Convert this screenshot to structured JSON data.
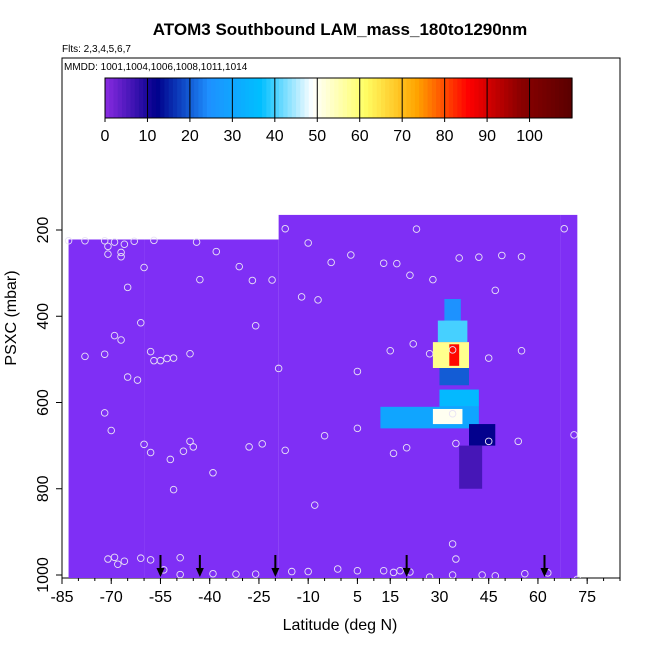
{
  "chart_data": {
    "type": "heatmap",
    "title": "ATOM3 Southbound LAM_mass_180to1290nm",
    "subtitle_flights": "Flts: 2,3,4,5,6,7",
    "subtitle_dates": "MMDD: 1001,1004,1006,1008,1011,1014",
    "xlabel": "Latitude (deg N)",
    "ylabel": "PSXC (mbar)",
    "xlim": [
      -85,
      85
    ],
    "ylim": [
      1000,
      100
    ],
    "x_ticks": [
      -85,
      -70,
      -55,
      -40,
      -25,
      -10,
      5,
      15,
      30,
      45,
      60,
      75
    ],
    "x_tick_labels": [
      "-85",
      "-70",
      "-55",
      "-40",
      "-25",
      "-10",
      "5",
      "15",
      "30",
      "45",
      "60",
      "75"
    ],
    "y_ticks": [
      200,
      400,
      600,
      800,
      1000
    ],
    "y_tick_labels": [
      "200",
      "400",
      "600",
      "800",
      "1000"
    ],
    "colorbar": {
      "min": 0,
      "max": 110,
      "ticks": [
        0,
        10,
        20,
        30,
        40,
        50,
        60,
        70,
        80,
        90,
        100
      ],
      "tick_labels": [
        "0",
        "10",
        "20",
        "30",
        "40",
        "50",
        "60",
        "70",
        "80",
        "90",
        "100"
      ],
      "stops": [
        "#8a2be2",
        "#00008b",
        "#1e90ff",
        "#00bfff",
        "#ffffff",
        "#ffff66",
        "#ffa500",
        "#ff0000",
        "#8b0000",
        "#5a0000"
      ],
      "background_color": "#7f2ff5"
    },
    "field_columns": [
      {
        "x0": -83,
        "x1": -60,
        "p_top": 222,
        "p_bottom": 1000
      },
      {
        "x0": -60,
        "x1": -19,
        "p_top": 222,
        "p_bottom": 1000
      },
      {
        "x0": -19,
        "x1": 67,
        "p_top": 165,
        "p_bottom": 1000
      },
      {
        "x0": 67,
        "x1": 72,
        "p_top": 165,
        "p_bottom": 1000
      }
    ],
    "hotspots": [
      {
        "lat0": 31.5,
        "lat1": 36.5,
        "p0": 360,
        "p1": 410,
        "value": 25
      },
      {
        "lat0": 29.5,
        "lat1": 38.5,
        "p0": 410,
        "p1": 460,
        "value": 40
      },
      {
        "lat0": 28,
        "lat1": 39,
        "p0": 460,
        "p1": 520,
        "value": 58
      },
      {
        "lat0": 33,
        "lat1": 36,
        "p0": 465,
        "p1": 515,
        "value": 85
      },
      {
        "lat0": 30,
        "lat1": 39,
        "p0": 520,
        "p1": 560,
        "value": 20
      },
      {
        "lat0": 30,
        "lat1": 42,
        "p0": 570,
        "p1": 610,
        "value": 35
      },
      {
        "lat0": 12,
        "lat1": 42,
        "p0": 610,
        "p1": 660,
        "value": 30
      },
      {
        "lat0": 28,
        "lat1": 37,
        "p0": 615,
        "p1": 650,
        "value": 50
      },
      {
        "lat0": 39,
        "lat1": 47,
        "p0": 650,
        "p1": 700,
        "value": 12
      },
      {
        "lat0": 36,
        "lat1": 43,
        "p0": 700,
        "p1": 800,
        "value": 6
      }
    ],
    "sample_points": [
      {
        "x": -83,
        "y": 225
      },
      {
        "x": -78,
        "y": 225
      },
      {
        "x": -72,
        "y": 225
      },
      {
        "x": -71,
        "y": 238
      },
      {
        "x": -69,
        "y": 228
      },
      {
        "x": -67,
        "y": 252
      },
      {
        "x": -66,
        "y": 233
      },
      {
        "x": -63,
        "y": 226
      },
      {
        "x": -57,
        "y": 224
      },
      {
        "x": -71,
        "y": 256
      },
      {
        "x": -67,
        "y": 262
      },
      {
        "x": -60,
        "y": 287
      },
      {
        "x": -65,
        "y": 333
      },
      {
        "x": -44,
        "y": 228
      },
      {
        "x": -43,
        "y": 315
      },
      {
        "x": -38,
        "y": 250
      },
      {
        "x": -31,
        "y": 285
      },
      {
        "x": -27,
        "y": 317
      },
      {
        "x": -21,
        "y": 316
      },
      {
        "x": -26,
        "y": 422
      },
      {
        "x": -61,
        "y": 415
      },
      {
        "x": -69,
        "y": 445
      },
      {
        "x": -67,
        "y": 455
      },
      {
        "x": -78,
        "y": 493
      },
      {
        "x": -72,
        "y": 488
      },
      {
        "x": -58,
        "y": 482
      },
      {
        "x": -55,
        "y": 503
      },
      {
        "x": -53,
        "y": 498
      },
      {
        "x": -51,
        "y": 497
      },
      {
        "x": -46,
        "y": 487
      },
      {
        "x": -65,
        "y": 541
      },
      {
        "x": -62,
        "y": 548
      },
      {
        "x": -57,
        "y": 503
      },
      {
        "x": -72,
        "y": 624
      },
      {
        "x": -70,
        "y": 665
      },
      {
        "x": -60,
        "y": 697
      },
      {
        "x": -58,
        "y": 716
      },
      {
        "x": -52,
        "y": 732
      },
      {
        "x": -48,
        "y": 713
      },
      {
        "x": -46,
        "y": 690
      },
      {
        "x": -45,
        "y": 703
      },
      {
        "x": -51,
        "y": 802
      },
      {
        "x": -39,
        "y": 763
      },
      {
        "x": -28,
        "y": 703
      },
      {
        "x": -24,
        "y": 696
      },
      {
        "x": -17,
        "y": 711
      },
      {
        "x": -19,
        "y": 521
      },
      {
        "x": -17,
        "y": 197
      },
      {
        "x": -10,
        "y": 230
      },
      {
        "x": -3,
        "y": 275
      },
      {
        "x": 3,
        "y": 258
      },
      {
        "x": -12,
        "y": 355
      },
      {
        "x": -7,
        "y": 362
      },
      {
        "x": 5,
        "y": 528
      },
      {
        "x": 5,
        "y": 660
      },
      {
        "x": -5,
        "y": 677
      },
      {
        "x": -8,
        "y": 838
      },
      {
        "x": 13,
        "y": 277
      },
      {
        "x": 17,
        "y": 278
      },
      {
        "x": 21,
        "y": 305
      },
      {
        "x": 23,
        "y": 198
      },
      {
        "x": 28,
        "y": 315
      },
      {
        "x": 15,
        "y": 480
      },
      {
        "x": 16,
        "y": 718
      },
      {
        "x": 20,
        "y": 705
      },
      {
        "x": 22,
        "y": 464
      },
      {
        "x": 36,
        "y": 265
      },
      {
        "x": 42,
        "y": 263
      },
      {
        "x": 49,
        "y": 259
      },
      {
        "x": 55,
        "y": 262
      },
      {
        "x": 47,
        "y": 340
      },
      {
        "x": 55,
        "y": 480
      },
      {
        "x": 45,
        "y": 497
      },
      {
        "x": 34,
        "y": 478
      },
      {
        "x": 27,
        "y": 487
      },
      {
        "x": 45,
        "y": 690
      },
      {
        "x": 54,
        "y": 690
      },
      {
        "x": 35,
        "y": 695
      },
      {
        "x": 34,
        "y": 626
      },
      {
        "x": 68,
        "y": 197
      },
      {
        "x": 71,
        "y": 675
      },
      {
        "x": 34,
        "y": 928
      },
      {
        "x": 35,
        "y": 963
      },
      {
        "x": -68,
        "y": 975
      },
      {
        "x": -66,
        "y": 968
      },
      {
        "x": -71,
        "y": 963
      },
      {
        "x": -69,
        "y": 959
      },
      {
        "x": -61,
        "y": 961
      },
      {
        "x": -58,
        "y": 965
      },
      {
        "x": -49,
        "y": 960
      },
      {
        "x": -54,
        "y": 988
      },
      {
        "x": -49,
        "y": 999
      },
      {
        "x": -39,
        "y": 997
      },
      {
        "x": -32,
        "y": 998
      },
      {
        "x": -26,
        "y": 998
      },
      {
        "x": -15,
        "y": 992
      },
      {
        "x": -10,
        "y": 992
      },
      {
        "x": -1,
        "y": 986
      },
      {
        "x": 5,
        "y": 990
      },
      {
        "x": 13,
        "y": 990
      },
      {
        "x": 16,
        "y": 994
      },
      {
        "x": 18,
        "y": 990
      },
      {
        "x": 21,
        "y": 993
      },
      {
        "x": 27,
        "y": 1005
      },
      {
        "x": 34,
        "y": 1000
      },
      {
        "x": 43,
        "y": 1000
      },
      {
        "x": 47,
        "y": 1002
      },
      {
        "x": 56,
        "y": 997
      },
      {
        "x": 63,
        "y": 995
      },
      {
        "x": 72,
        "y": 1010
      }
    ],
    "flight_arrows": [
      -55,
      -43,
      -20,
      20,
      62
    ]
  }
}
